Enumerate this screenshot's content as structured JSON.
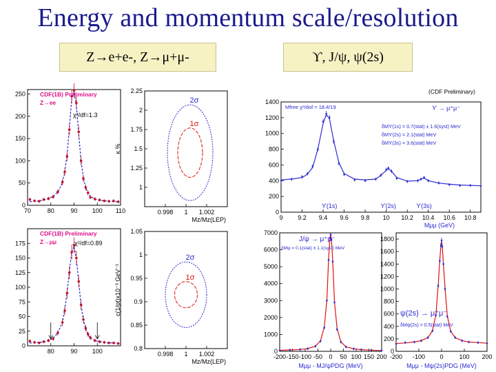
{
  "title": "Energy and momentum scale/resolution",
  "label_left": "Z→e+e-, Z→μ+μ-",
  "label_right": "ϒ, J/ψ, ψ(2s)",
  "colors": {
    "title": "#1a1a8c",
    "data": "#c0102a",
    "fit": "#2a2ad0",
    "pink": "#e0108a",
    "red": "#e01010"
  },
  "chart_data": [
    {
      "id": "zee",
      "type": "line",
      "title": "CDF(1B) Preliminary",
      "channel": "Z→ee",
      "fit_text": "χ²/df=1.3",
      "xlim": [
        70,
        110
      ],
      "ylim": [
        0,
        260
      ],
      "xticks": [
        70,
        80,
        90,
        100,
        110
      ],
      "yticks": [
        0,
        50,
        100,
        150,
        200,
        250
      ],
      "x": [
        71,
        73,
        75,
        77,
        79,
        81,
        83,
        85,
        86,
        87,
        88,
        89,
        90,
        91,
        92,
        93,
        94,
        95,
        96,
        97,
        99,
        101,
        103,
        105,
        107,
        109
      ],
      "values": [
        13,
        10,
        9,
        13,
        15,
        19,
        30,
        52,
        75,
        110,
        170,
        245,
        258,
        230,
        165,
        100,
        60,
        40,
        28,
        18,
        14,
        12,
        10,
        9,
        10,
        8
      ],
      "fit": [
        8,
        9,
        10,
        12,
        15,
        20,
        30,
        50,
        75,
        115,
        175,
        240,
        255,
        225,
        160,
        100,
        62,
        40,
        27,
        20,
        14,
        11,
        10,
        9,
        8,
        8
      ]
    },
    {
      "id": "zmm",
      "type": "line",
      "title": "CDF(1B) Preliminary",
      "channel": "Z→μμ",
      "fit_text": "χ²/df=0.89",
      "xlim": [
        70,
        110
      ],
      "ylim": [
        0,
        200
      ],
      "xticks": [
        80,
        90,
        100
      ],
      "yticks": [
        0,
        25,
        50,
        75,
        100,
        125,
        150,
        175
      ],
      "x": [
        71,
        73,
        75,
        77,
        79,
        81,
        83,
        85,
        86,
        87,
        88,
        89,
        90,
        91,
        92,
        93,
        94,
        95,
        96,
        97,
        99,
        101,
        103,
        105,
        107,
        109
      ],
      "values": [
        8,
        6,
        5,
        7,
        9,
        12,
        22,
        40,
        60,
        90,
        125,
        160,
        172,
        150,
        110,
        70,
        45,
        30,
        20,
        14,
        9,
        7,
        6,
        5,
        5,
        4
      ],
      "fit": [
        5,
        5,
        6,
        7,
        9,
        13,
        22,
        40,
        62,
        92,
        128,
        160,
        170,
        148,
        108,
        70,
        45,
        29,
        19,
        13,
        9,
        7,
        6,
        5,
        5,
        4
      ]
    },
    {
      "id": "ellipse_e",
      "type": "contour",
      "ylabel": "κ %",
      "xlabel": "Mz/Mz(LEP)",
      "xlim": [
        0.996,
        1.004
      ],
      "ylim": [
        0.75,
        2.25
      ],
      "xticks": [
        0.998,
        1,
        1.002
      ],
      "yticks": [
        1,
        1.25,
        1.5,
        1.75,
        2,
        2.25
      ],
      "contours": [
        {
          "label": "1σ",
          "cx": 1.0004,
          "cy": 1.45,
          "rx": 0.0012,
          "ry": 0.32
        },
        {
          "label": "2σ",
          "cx": 1.0004,
          "cy": 1.45,
          "rx": 0.0022,
          "ry": 0.62
        }
      ]
    },
    {
      "id": "ellipse_m",
      "type": "contour",
      "ylabel": "c(1/pt)x10⁻³ GeV⁻¹",
      "xlabel": "Mz/Mz(LEP)",
      "xlim": [
        0.996,
        1.004
      ],
      "ylim": [
        0.8,
        1.05
      ],
      "xticks": [
        0.998,
        1,
        1.002
      ],
      "yticks": [
        0.8,
        0.85,
        0.9,
        0.95,
        1,
        1.05
      ],
      "contours": [
        {
          "label": "1σ",
          "cx": 1.0,
          "cy": 0.915,
          "rx": 0.0011,
          "ry": 0.028
        },
        {
          "label": "2σ",
          "cx": 1.0,
          "cy": 0.915,
          "rx": 0.002,
          "ry": 0.07
        }
      ]
    },
    {
      "id": "upsilon",
      "type": "line",
      "title": "(CDF Preliminary)",
      "decay": "ϒ → μ⁺μ⁻",
      "fit_text": "Mfree χ²/dof = 18.4/19",
      "notes": [
        "δMϒ(1s) = 0.7(stat) ± 1.6(syst) MeV",
        "δMϒ(2s) = 2.1(stat) MeV",
        "δMϒ(3s) = 3.6(stat) MeV"
      ],
      "peaks": [
        "ϒ(1s)",
        "ϒ(2s)",
        "ϒ(3s)"
      ],
      "xlabel": "Mμμ (GeV)",
      "xlim": [
        9.0,
        10.9
      ],
      "ylim": [
        0,
        1400
      ],
      "xticks": [
        9,
        9.2,
        9.4,
        9.6,
        9.8,
        10,
        10.2,
        10.4,
        10.6,
        10.8
      ],
      "yticks": [
        0,
        200,
        400,
        600,
        800,
        1000,
        1200,
        1400
      ],
      "x": [
        9.0,
        9.1,
        9.2,
        9.25,
        9.3,
        9.35,
        9.4,
        9.43,
        9.46,
        9.5,
        9.55,
        9.6,
        9.7,
        9.8,
        9.9,
        9.95,
        10.0,
        10.02,
        10.05,
        10.1,
        10.2,
        10.3,
        10.33,
        10.36,
        10.4,
        10.5,
        10.6,
        10.7,
        10.8,
        10.9
      ],
      "values": [
        400,
        420,
        450,
        490,
        580,
        800,
        1150,
        1250,
        1200,
        900,
        620,
        480,
        410,
        400,
        420,
        470,
        540,
        560,
        520,
        430,
        390,
        400,
        420,
        440,
        400,
        370,
        350,
        340,
        340,
        330
      ],
      "fit": [
        410,
        420,
        440,
        480,
        570,
        800,
        1130,
        1240,
        1190,
        910,
        630,
        490,
        420,
        410,
        420,
        470,
        530,
        555,
        520,
        440,
        395,
        400,
        420,
        435,
        400,
        370,
        355,
        345,
        340,
        335
      ]
    },
    {
      "id": "jpsi",
      "type": "line",
      "decay": "J/ψ → μ⁺μ⁻",
      "fit_text": "δMψ = 0.1(stat) ± 1.1(syst) MeV",
      "xlabel": "Mμμ - MJ/ψPDG (MeV)",
      "xlim": [
        -200,
        200
      ],
      "ylim": [
        0,
        7000
      ],
      "xticks": [
        -200,
        -150,
        -100,
        -50,
        0,
        50,
        100,
        150,
        200
      ],
      "yticks": [
        0,
        1000,
        2000,
        3000,
        4000,
        5000,
        6000,
        7000
      ],
      "x": [
        -200,
        -160,
        -120,
        -90,
        -60,
        -40,
        -25,
        -15,
        -8,
        -3,
        0,
        3,
        8,
        15,
        25,
        40,
        60,
        90,
        120,
        160,
        200
      ],
      "values": [
        60,
        80,
        110,
        160,
        300,
        600,
        1400,
        3000,
        5400,
        6700,
        6900,
        6600,
        5300,
        2900,
        1300,
        550,
        260,
        150,
        100,
        70,
        50
      ],
      "fit": [
        60,
        80,
        110,
        160,
        300,
        620,
        1450,
        3050,
        5450,
        6700,
        6900,
        6650,
        5350,
        2950,
        1350,
        560,
        270,
        150,
        100,
        70,
        50
      ]
    },
    {
      "id": "psi2s",
      "type": "line",
      "decay": "ψ(2s) → μ⁺μ⁻",
      "fit_text": "δMψ(2s) = 0.5(stat) MeV",
      "xlabel": "Mμμ - Mψ(2s)PDG (MeV)",
      "xlim": [
        -200,
        200
      ],
      "ylim": [
        0,
        1900
      ],
      "xticks": [
        -200,
        -100,
        0,
        100,
        200
      ],
      "yticks": [
        0,
        200,
        400,
        600,
        800,
        1000,
        1200,
        1400,
        1600,
        1800
      ],
      "x": [
        -200,
        -160,
        -120,
        -90,
        -60,
        -40,
        -25,
        -15,
        -8,
        -3,
        0,
        3,
        8,
        15,
        25,
        40,
        60,
        90,
        120,
        160,
        200
      ],
      "values": [
        120,
        140,
        150,
        170,
        220,
        330,
        580,
        1050,
        1450,
        1700,
        1780,
        1680,
        1400,
        1000,
        560,
        320,
        220,
        170,
        150,
        140,
        130
      ],
      "fit": [
        125,
        135,
        150,
        170,
        220,
        330,
        590,
        1060,
        1460,
        1700,
        1770,
        1690,
        1410,
        1010,
        570,
        320,
        220,
        170,
        150,
        140,
        130
      ]
    }
  ]
}
